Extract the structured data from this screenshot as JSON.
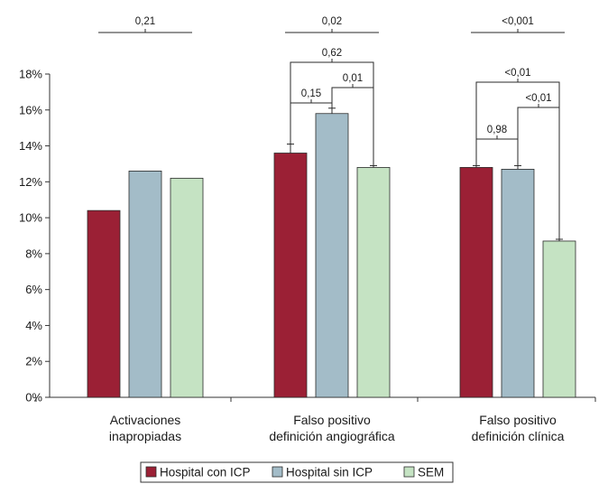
{
  "chart_data": {
    "type": "bar",
    "categories": [
      [
        "Activaciones",
        "inapropiadas"
      ],
      [
        "Falso positivo",
        "definición angiográfica"
      ],
      [
        "Falso positivo",
        "definición clínica"
      ]
    ],
    "series": [
      {
        "name": "Hospital con ICP",
        "color": "#9b2035",
        "values": [
          10.4,
          13.6,
          12.8
        ]
      },
      {
        "name": "Hospital sin ICP",
        "color": "#a3bcc8",
        "values": [
          12.6,
          15.8,
          12.7
        ]
      },
      {
        "name": "SEM",
        "color": "#c5e3c3",
        "values": [
          12.2,
          12.8,
          8.7
        ]
      }
    ],
    "error_tops": [
      [
        null,
        null,
        null
      ],
      [
        14.1,
        16.1,
        12.9
      ],
      [
        12.9,
        12.9,
        8.8
      ]
    ],
    "y_ticks": [
      "0%",
      "2%",
      "4%",
      "6%",
      "8%",
      "10%",
      "12%",
      "14%",
      "16%",
      "18%"
    ],
    "ylim": [
      0,
      18
    ],
    "overall_p": [
      "0,21",
      "0,02",
      "<0,001"
    ],
    "comparisons": [
      {
        "group": 1,
        "from": 0,
        "to": 1,
        "p": "0,15"
      },
      {
        "group": 1,
        "from": 1,
        "to": 2,
        "p": "0,01"
      },
      {
        "group": 1,
        "from": 0,
        "to": 2,
        "p": "0,62"
      },
      {
        "group": 2,
        "from": 0,
        "to": 1,
        "p": "0,98"
      },
      {
        "group": 2,
        "from": 1,
        "to": 2,
        "p": "<0,01"
      },
      {
        "group": 2,
        "from": 0,
        "to": 2,
        "p": "<0,01"
      }
    ],
    "legend_position": "bottom"
  }
}
